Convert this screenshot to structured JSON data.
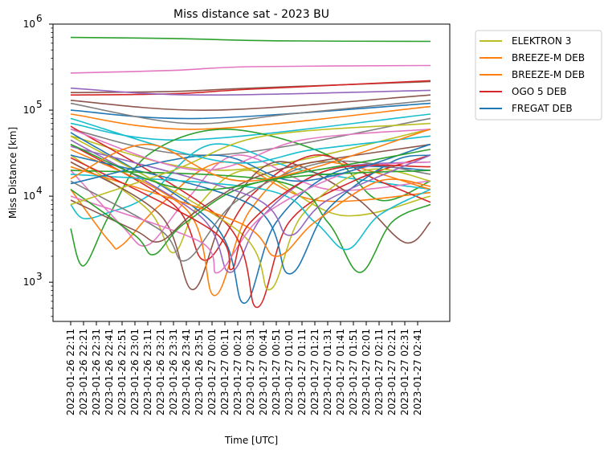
{
  "chart_data": {
    "type": "line",
    "title": "Miss distance sat - 2023 BU",
    "xlabel": "Time [UTC]",
    "ylabel": "Miss Distance [km]",
    "y_scale": "log",
    "ylim": [
      350,
      1000000
    ],
    "y_ticks": [
      {
        "value": 1000,
        "base": "10",
        "exp": "3"
      },
      {
        "value": 10000,
        "base": "10",
        "exp": "4"
      },
      {
        "value": 100000,
        "base": "10",
        "exp": "5"
      },
      {
        "value": 1000000,
        "base": "10",
        "exp": "6"
      }
    ],
    "x_ticks": [
      "2023-01-26 22:11",
      "2023-01-26 22:21",
      "2023-01-26 22:31",
      "2023-01-26 22:41",
      "2023-01-26 22:51",
      "2023-01-26 23:01",
      "2023-01-26 23:11",
      "2023-01-26 23:21",
      "2023-01-26 23:31",
      "2023-01-26 23:41",
      "2023-01-26 23:51",
      "2023-01-27 00:01",
      "2023-01-27 00:11",
      "2023-01-27 00:21",
      "2023-01-27 00:31",
      "2023-01-27 00:41",
      "2023-01-27 00:51",
      "2023-01-27 01:01",
      "2023-01-27 01:11",
      "2023-01-27 01:21",
      "2023-01-27 01:31",
      "2023-01-27 01:41",
      "2023-01-27 01:51",
      "2023-01-27 02:01",
      "2023-01-27 02:11",
      "2023-01-27 02:21",
      "2023-01-27 02:31",
      "2023-01-27 02:41"
    ],
    "legend_position": "outside-top-right",
    "legend": [
      {
        "name": "ELEKTRON 3",
        "color": "#bcbd22"
      },
      {
        "name": "BREEZE-M DEB",
        "color": "#ff7f0e"
      },
      {
        "name": "BREEZE-M DEB",
        "color": "#ff7f0e"
      },
      {
        "name": "OGO 5 DEB",
        "color": "#d62728"
      },
      {
        "name": "FREGAT DEB",
        "color": "#1f77b4"
      }
    ],
    "series": [
      {
        "color": "#2ca02c",
        "x": [
          "2023-01-26 22:11",
          "2023-01-26 23:31",
          "2023-01-27 00:51",
          "2023-01-27 02:51"
        ],
        "y": [
          700000,
          680000,
          640000,
          630000
        ]
      },
      {
        "color": "#e377c2",
        "x": [
          "2023-01-26 22:11",
          "2023-01-26 23:31",
          "2023-01-27 00:31",
          "2023-01-27 02:51"
        ],
        "y": [
          270000,
          290000,
          320000,
          330000
        ]
      },
      {
        "color": "#8c564b",
        "x": [
          "2023-01-26 22:11",
          "2023-01-26 23:31",
          "2023-01-27 00:31",
          "2023-01-27 02:51"
        ],
        "y": [
          160000,
          165000,
          180000,
          215000
        ]
      },
      {
        "color": "#d62728",
        "x": [
          "2023-01-26 22:11",
          "2023-01-26 23:31",
          "2023-01-27 00:31",
          "2023-01-27 02:51"
        ],
        "y": [
          150000,
          155000,
          175000,
          220000
        ]
      },
      {
        "color": "#9467bd",
        "x": [
          "2023-01-26 22:11",
          "2023-01-26 23:51",
          "2023-01-27 02:51"
        ],
        "y": [
          180000,
          150000,
          170000
        ]
      },
      {
        "color": "#1f77b4",
        "x": [
          "2023-01-26 22:11",
          "2023-01-26 23:51",
          "2023-01-27 02:51"
        ],
        "y": [
          100000,
          80000,
          120000
        ]
      },
      {
        "color": "#ff7f0e",
        "x": [
          "2023-01-26 22:11",
          "2023-01-26 23:51",
          "2023-01-27 02:51"
        ],
        "y": [
          90000,
          60000,
          110000
        ]
      },
      {
        "color": "#17becf",
        "x": [
          "2023-01-26 22:11",
          "2023-01-26 23:41",
          "2023-01-27 02:51"
        ],
        "y": [
          70000,
          45000,
          90000
        ]
      },
      {
        "color": "#7f7f7f",
        "x": [
          "2023-01-26 22:11",
          "2023-01-27 00:01",
          "2023-01-27 02:51"
        ],
        "y": [
          60000,
          30000,
          80000
        ]
      },
      {
        "color": "#bcbd22",
        "x": [
          "2023-01-26 22:11",
          "2023-01-27 00:11",
          "2023-01-27 02:51"
        ],
        "y": [
          50000,
          20000,
          60000
        ]
      },
      {
        "color": "#2ca02c",
        "x": [
          "2023-01-26 22:11",
          "2023-01-26 22:21",
          "2023-01-26 22:41",
          "2023-01-26 23:11",
          "2023-01-27 00:11",
          "2023-01-27 01:31",
          "2023-01-27 02:11",
          "2023-01-27 02:51"
        ],
        "y": [
          4200,
          1550,
          6000,
          30000,
          60000,
          30000,
          9000,
          15000
        ]
      },
      {
        "color": "#17becf",
        "x": [
          "2023-01-26 22:11",
          "2023-01-26 22:21",
          "2023-01-26 22:41",
          "2023-01-26 23:11",
          "2023-01-27 00:01",
          "2023-01-27 01:11",
          "2023-01-27 02:51"
        ],
        "y": [
          8000,
          5500,
          6500,
          10000,
          40000,
          20000,
          12000
        ]
      },
      {
        "color": "#ff7f0e",
        "x": [
          "2023-01-26 22:11",
          "2023-01-26 22:41",
          "2023-01-26 22:51",
          "2023-01-26 23:21",
          "2023-01-27 00:11",
          "2023-01-27 01:21",
          "2023-01-27 02:51"
        ],
        "y": [
          12000,
          3000,
          2700,
          8000,
          25000,
          9000,
          11000
        ]
      },
      {
        "color": "#e377c2",
        "x": [
          "2023-01-26 22:11",
          "2023-01-26 22:51",
          "2023-01-26 23:11",
          "2023-01-26 23:41",
          "2023-01-27 00:21",
          "2023-01-27 01:31",
          "2023-01-27 02:51"
        ],
        "y": [
          20000,
          4500,
          2700,
          9000,
          30000,
          12000,
          15000
        ]
      },
      {
        "color": "#bcbd22",
        "x": [
          "2023-01-26 22:11",
          "2023-01-26 23:11",
          "2023-01-26 23:31",
          "2023-01-26 23:51",
          "2023-01-27 00:31",
          "2023-01-27 01:41",
          "2023-01-27 02:51"
        ],
        "y": [
          30000,
          7000,
          2200,
          8000,
          20000,
          6000,
          10000
        ]
      },
      {
        "color": "#8c564b",
        "x": [
          "2023-01-26 22:11",
          "2023-01-26 23:21",
          "2023-01-26 23:46",
          "2023-01-27 00:11",
          "2023-01-27 00:51",
          "2023-01-27 01:51",
          "2023-01-27 02:31",
          "2023-01-27 02:51"
        ],
        "y": [
          25000,
          6000,
          820,
          6000,
          25000,
          10000,
          2900,
          5000
        ]
      },
      {
        "color": "#d62728",
        "x": [
          "2023-01-26 22:11",
          "2023-01-26 23:31",
          "2023-01-26 23:56",
          "2023-01-27 00:31",
          "2023-01-27 01:21",
          "2023-01-27 02:11",
          "2023-01-27 02:51"
        ],
        "y": [
          40000,
          8000,
          1800,
          10000,
          30000,
          15000,
          8500
        ]
      },
      {
        "color": "#ff7f0e",
        "x": [
          "2023-01-26 22:11",
          "2023-01-26 23:41",
          "2023-01-27 00:03",
          "2023-01-27 00:31",
          "2023-01-27 01:21",
          "2023-01-27 02:51"
        ],
        "y": [
          35000,
          7000,
          700,
          7000,
          25000,
          12000
        ]
      },
      {
        "color": "#9467bd",
        "x": [
          "2023-01-26 22:11",
          "2023-01-26 23:51",
          "2023-01-27 00:15",
          "2023-01-27 00:41",
          "2023-01-27 01:31",
          "2023-01-27 02:51"
        ],
        "y": [
          45000,
          6000,
          1300,
          6000,
          20000,
          25000
        ]
      },
      {
        "color": "#1f77b4",
        "x": [
          "2023-01-26 22:11",
          "2023-01-27 00:01",
          "2023-01-27 00:26",
          "2023-01-27 00:51",
          "2023-01-27 01:41",
          "2023-01-27 02:51"
        ],
        "y": [
          55000,
          5000,
          570,
          5000,
          20000,
          20000
        ]
      },
      {
        "color": "#d62728",
        "x": [
          "2023-01-26 22:11",
          "2023-01-27 00:11",
          "2023-01-27 00:36",
          "2023-01-27 01:01",
          "2023-01-27 01:51",
          "2023-01-27 02:51"
        ],
        "y": [
          65000,
          5000,
          510,
          5000,
          15000,
          30000
        ]
      },
      {
        "color": "#bcbd22",
        "x": [
          "2023-01-26 22:11",
          "2023-01-27 00:21",
          "2023-01-27 00:46",
          "2023-01-27 01:11",
          "2023-01-27 02:01",
          "2023-01-27 02:51"
        ],
        "y": [
          50000,
          4000,
          820,
          6000,
          20000,
          15000
        ]
      },
      {
        "color": "#1f77b4",
        "x": [
          "2023-01-26 22:11",
          "2023-01-27 00:31",
          "2023-01-27 01:01",
          "2023-01-27 01:31",
          "2023-01-27 02:21",
          "2023-01-27 02:51"
        ],
        "y": [
          30000,
          8000,
          1250,
          7000,
          25000,
          30000
        ]
      },
      {
        "color": "#2ca02c",
        "x": [
          "2023-01-26 22:11",
          "2023-01-27 00:51",
          "2023-01-27 01:31",
          "2023-01-27 01:56",
          "2023-01-27 02:21",
          "2023-01-27 02:51"
        ],
        "y": [
          20000,
          15000,
          5000,
          1300,
          5000,
          8000
        ]
      },
      {
        "color": "#17becf",
        "x": [
          "2023-01-26 22:11",
          "2023-01-27 00:41",
          "2023-01-27 01:21",
          "2023-01-27 01:46",
          "2023-01-27 02:11",
          "2023-01-27 02:51"
        ],
        "y": [
          18000,
          12000,
          5000,
          2400,
          6000,
          12000
        ]
      },
      {
        "color": "#7f7f7f",
        "x": [
          "2023-01-26 22:11",
          "2023-01-26 23:21",
          "2023-01-26 23:41",
          "2023-01-27 00:21",
          "2023-01-27 01:31",
          "2023-01-27 02:51"
        ],
        "y": [
          15000,
          4000,
          1800,
          9000,
          25000,
          18000
        ]
      },
      {
        "color": "#e377c2",
        "x": [
          "2023-01-26 22:11",
          "2023-01-26 23:51",
          "2023-01-27 00:06",
          "2023-01-27 00:41",
          "2023-01-27 01:51",
          "2023-01-27 02:51"
        ],
        "y": [
          10000,
          3000,
          1300,
          6000,
          20000,
          25000
        ]
      },
      {
        "color": "#8c564b",
        "x": [
          "2023-01-26 22:11",
          "2023-01-26 23:01",
          "2023-01-26 23:21",
          "2023-01-26 23:51",
          "2023-01-27 00:51",
          "2023-01-27 02:51"
        ],
        "y": [
          9000,
          4000,
          3000,
          7000,
          20000,
          40000
        ]
      },
      {
        "color": "#ff7f0e",
        "x": [
          "2023-01-26 22:11",
          "2023-01-27 00:21",
          "2023-01-27 00:51",
          "2023-01-27 01:21",
          "2023-01-27 02:11",
          "2023-01-27 02:51"
        ],
        "y": [
          22000,
          5000,
          2000,
          5000,
          15000,
          13000
        ]
      },
      {
        "color": "#2ca02c",
        "x": [
          "2023-01-26 22:11",
          "2023-01-26 23:01",
          "2023-01-26 23:16",
          "2023-01-26 23:41",
          "2023-01-27 00:41",
          "2023-01-27 02:51"
        ],
        "y": [
          12000,
          3500,
          2100,
          5000,
          15000,
          20000
        ]
      },
      {
        "color": "#d62728",
        "x": [
          "2023-01-26 22:11",
          "2023-01-27 00:01",
          "2023-01-27 00:16",
          "2023-01-27 00:31",
          "2023-01-27 01:31",
          "2023-01-27 02:51"
        ],
        "y": [
          28000,
          4000,
          1400,
          5000,
          20000,
          22000
        ]
      },
      {
        "color": "#9467bd",
        "x": [
          "2023-01-26 22:11",
          "2023-01-27 00:31",
          "2023-01-27 01:01",
          "2023-01-27 01:31",
          "2023-01-27 02:51"
        ],
        "y": [
          38000,
          10000,
          3500,
          9000,
          30000
        ]
      },
      {
        "color": "#1f77b4",
        "x": [
          "2023-01-26 22:11",
          "2023-01-27 00:01",
          "2023-01-27 01:11",
          "2023-01-27 02:51"
        ],
        "y": [
          14000,
          30000,
          15000,
          40000
        ]
      },
      {
        "color": "#bcbd22",
        "x": [
          "2023-01-26 22:11",
          "2023-01-26 23:31",
          "2023-01-27 00:41",
          "2023-01-27 02:51"
        ],
        "y": [
          8000,
          20000,
          50000,
          70000
        ]
      },
      {
        "color": "#e377c2",
        "x": [
          "2023-01-26 22:11",
          "2023-01-26 23:51",
          "2023-01-27 01:11",
          "2023-01-27 02:51"
        ],
        "y": [
          60000,
          20000,
          45000,
          60000
        ]
      },
      {
        "color": "#17becf",
        "x": [
          "2023-01-26 22:11",
          "2023-01-27 00:11",
          "2023-01-27 01:21",
          "2023-01-27 02:51"
        ],
        "y": [
          80000,
          25000,
          35000,
          50000
        ]
      },
      {
        "color": "#7f7f7f",
        "x": [
          "2023-01-26 22:11",
          "2023-01-26 23:41",
          "2023-01-27 01:01",
          "2023-01-27 02:51"
        ],
        "y": [
          120000,
          70000,
          90000,
          130000
        ]
      },
      {
        "color": "#8c564b",
        "x": [
          "2023-01-26 22:11",
          "2023-01-27 00:01",
          "2023-01-27 02:51"
        ],
        "y": [
          130000,
          100000,
          150000
        ]
      },
      {
        "color": "#2ca02c",
        "x": [
          "2023-01-26 22:11",
          "2023-01-26 23:41",
          "2023-01-27 01:21",
          "2023-01-27 02:51"
        ],
        "y": [
          40000,
          12000,
          20000,
          35000
        ]
      },
      {
        "color": "#ff7f0e",
        "x": [
          "2023-01-26 22:11",
          "2023-01-26 23:11",
          "2023-01-27 00:31",
          "2023-01-27 02:51"
        ],
        "y": [
          16000,
          40000,
          15000,
          60000
        ]
      }
    ]
  }
}
